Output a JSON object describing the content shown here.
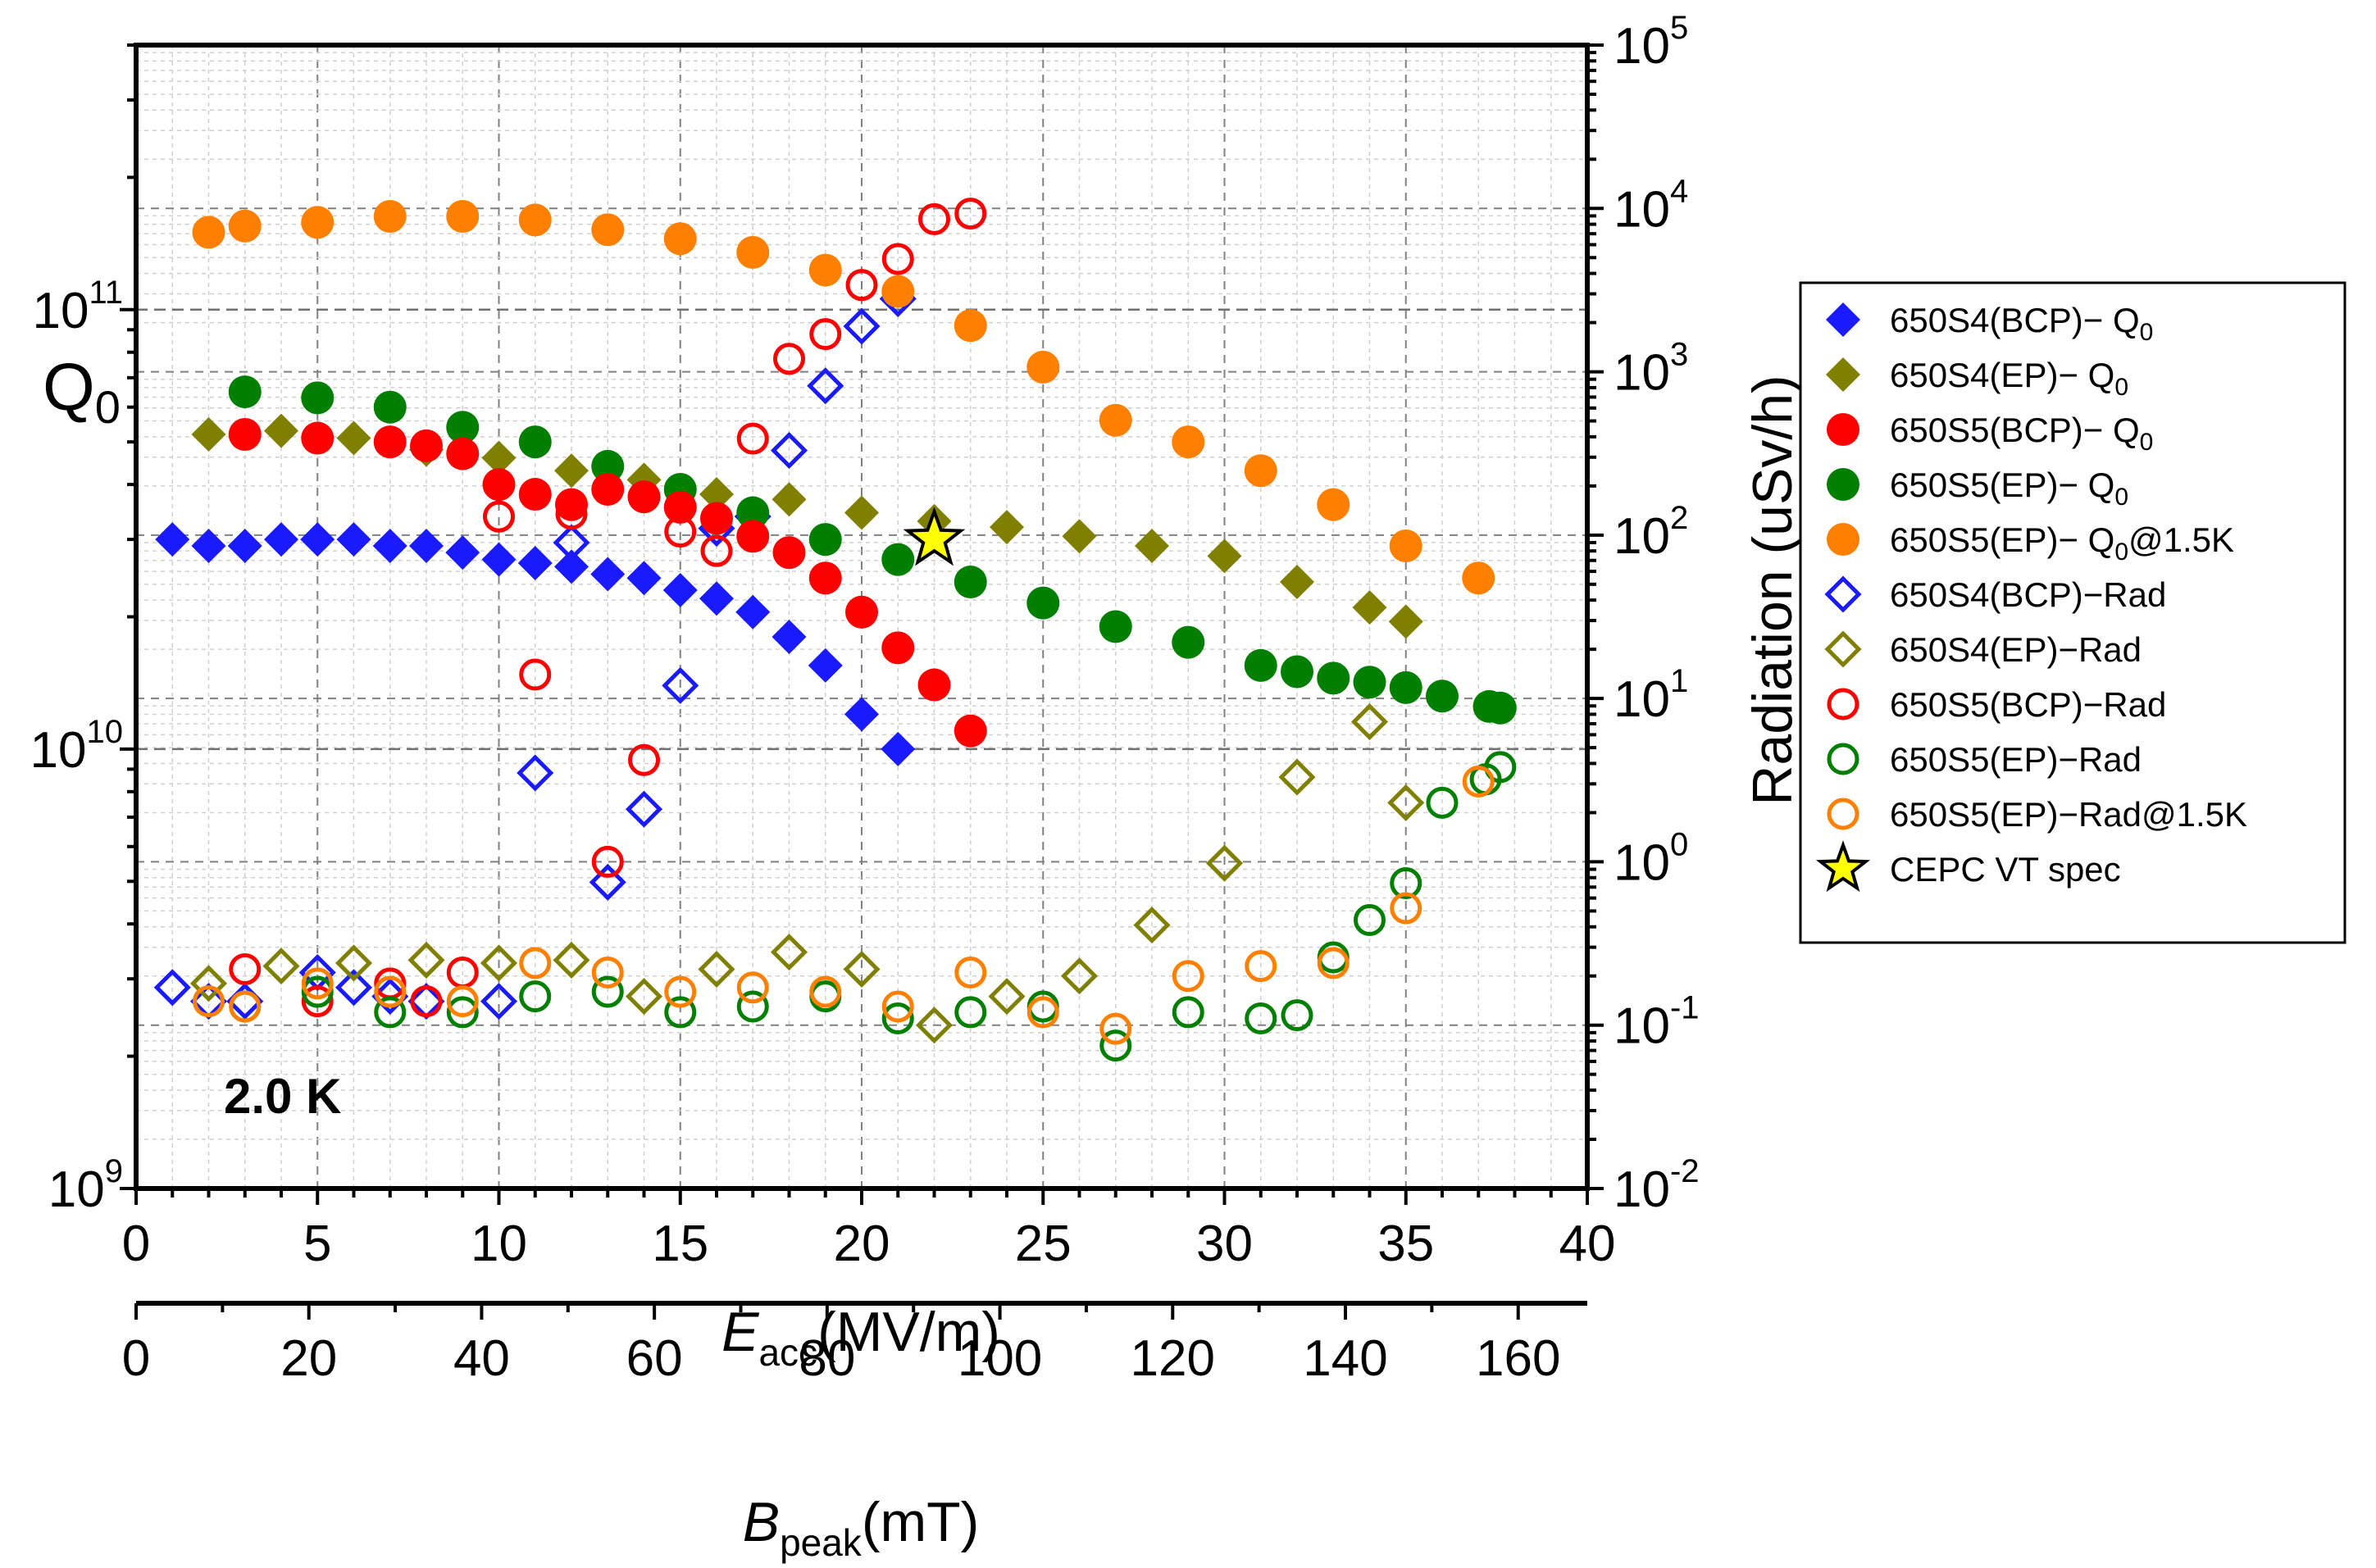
{
  "chart_data": {
    "type": "scatter",
    "annotation": "2.0 K",
    "x_axis": {
      "label_main": "E",
      "label_sub": "acc",
      "label_unit": "(MV/m)",
      "range": [
        0,
        40
      ],
      "ticks": [
        "0",
        "5",
        "10",
        "15",
        "20",
        "25",
        "30",
        "35",
        "40"
      ]
    },
    "x2_axis": {
      "label_main": "B",
      "label_sub": "peak",
      "label_unit": "(mT)",
      "ratio_mT_per_MVm": 4.2,
      "ticks": [
        "0",
        "20",
        "40",
        "60",
        "80",
        "100",
        "120",
        "140",
        "160"
      ]
    },
    "y_left": {
      "label_main": "Q",
      "label_sub": "0",
      "scale": "log",
      "range": [
        1000000000.0,
        400000000000.0
      ],
      "tick_base": "10",
      "tick_exponents": [
        "9",
        "10",
        "11"
      ]
    },
    "y_right": {
      "label": "Radiation (uSv/h)",
      "scale": "log",
      "range": [
        0.01,
        100000
      ],
      "tick_base": "10",
      "tick_exponents": [
        "-2",
        "-1",
        "0",
        "1",
        "2",
        "3",
        "4",
        "5"
      ]
    },
    "series": [
      {
        "name": "650S4(BCP)− Q0",
        "legend_main": "650S4(BCP)− Q",
        "legend_sub": "0",
        "legend_tail": "",
        "axis": "left",
        "marker": "diamond",
        "filled": true,
        "color": "#1a1aff",
        "points": [
          [
            1,
            30000000000.0
          ],
          [
            2,
            29000000000.0
          ],
          [
            3,
            29000000000.0
          ],
          [
            4,
            30000000000.0
          ],
          [
            5,
            30000000000.0
          ],
          [
            6,
            30000000000.0
          ],
          [
            7,
            29000000000.0
          ],
          [
            8,
            29000000000.0
          ],
          [
            9,
            28000000000.0
          ],
          [
            10,
            27000000000.0
          ],
          [
            11,
            26500000000.0
          ],
          [
            12,
            26000000000.0
          ],
          [
            13,
            25000000000.0
          ],
          [
            14,
            24500000000.0
          ],
          [
            15,
            23000000000.0
          ],
          [
            16,
            22000000000.0
          ],
          [
            17,
            20500000000.0
          ],
          [
            18,
            18000000000.0
          ],
          [
            19,
            15500000000.0
          ],
          [
            20,
            12000000000.0
          ],
          [
            21,
            10000000000.0
          ]
        ]
      },
      {
        "name": "650S4(EP)− Q0",
        "legend_main": "650S4(EP)− Q",
        "legend_sub": "0",
        "legend_tail": "",
        "axis": "left",
        "marker": "diamond",
        "filled": true,
        "color": "#7f7f00",
        "points": [
          [
            2,
            52000000000.0
          ],
          [
            4,
            53000000000.0
          ],
          [
            6,
            51000000000.0
          ],
          [
            8,
            48000000000.0
          ],
          [
            10,
            46000000000.0
          ],
          [
            12,
            43000000000.0
          ],
          [
            14,
            41000000000.0
          ],
          [
            16,
            38000000000.0
          ],
          [
            18,
            37000000000.0
          ],
          [
            20,
            34500000000.0
          ],
          [
            22,
            33000000000.0
          ],
          [
            24,
            32000000000.0
          ],
          [
            26,
            30500000000.0
          ],
          [
            28,
            29000000000.0
          ],
          [
            30,
            27500000000.0
          ],
          [
            32,
            24000000000.0
          ],
          [
            34,
            21000000000.0
          ],
          [
            35,
            19500000000.0
          ]
        ]
      },
      {
        "name": "650S5(BCP)− Q0",
        "legend_main": "650S5(BCP)− Q",
        "legend_sub": "0",
        "legend_tail": "",
        "axis": "left",
        "marker": "circle",
        "filled": true,
        "color": "#ff0000",
        "points": [
          [
            3,
            52000000000.0
          ],
          [
            5,
            51000000000.0
          ],
          [
            7,
            50000000000.0
          ],
          [
            8,
            49000000000.0
          ],
          [
            9,
            47000000000.0
          ],
          [
            10,
            40000000000.0
          ],
          [
            11,
            38000000000.0
          ],
          [
            12,
            36000000000.0
          ],
          [
            13,
            39000000000.0
          ],
          [
            14,
            37500000000.0
          ],
          [
            15,
            35500000000.0
          ],
          [
            16,
            33500000000.0
          ],
          [
            17,
            30500000000.0
          ],
          [
            18,
            28000000000.0
          ],
          [
            19,
            24500000000.0
          ],
          [
            20,
            20500000000.0
          ],
          [
            21,
            17000000000.0
          ],
          [
            22,
            14000000000.0
          ],
          [
            23,
            11000000000.0
          ]
        ]
      },
      {
        "name": "650S5(EP)− Q0",
        "legend_main": "650S5(EP)− Q",
        "legend_sub": "0",
        "legend_tail": "",
        "axis": "left",
        "marker": "circle",
        "filled": true,
        "color": "#007f00",
        "points": [
          [
            3,
            65000000000.0
          ],
          [
            5,
            63000000000.0
          ],
          [
            7,
            60000000000.0
          ],
          [
            9,
            54000000000.0
          ],
          [
            11,
            50000000000.0
          ],
          [
            13,
            44000000000.0
          ],
          [
            15,
            39000000000.0
          ],
          [
            17,
            34500000000.0
          ],
          [
            19,
            30000000000.0
          ],
          [
            21,
            27000000000.0
          ],
          [
            23,
            24000000000.0
          ],
          [
            25,
            21500000000.0
          ],
          [
            27,
            19000000000.0
          ],
          [
            29,
            17500000000.0
          ],
          [
            31,
            15500000000.0
          ],
          [
            32,
            15000000000.0
          ],
          [
            33,
            14500000000.0
          ],
          [
            34,
            14200000000.0
          ],
          [
            35,
            13800000000.0
          ],
          [
            36,
            13200000000.0
          ],
          [
            37.3,
            12500000000.0
          ],
          [
            37.6,
            12400000000.0
          ]
        ]
      },
      {
        "name": "650S5(EP)− Q0@1.5K",
        "legend_main": "650S5(EP)− Q",
        "legend_sub": "0",
        "legend_tail": "@1.5K",
        "axis": "left",
        "marker": "circle",
        "filled": true,
        "color": "#ff8000",
        "points": [
          [
            2,
            150000000000.0
          ],
          [
            3,
            155000000000.0
          ],
          [
            5,
            158000000000.0
          ],
          [
            7,
            163000000000.0
          ],
          [
            9,
            163000000000.0
          ],
          [
            11,
            160000000000.0
          ],
          [
            13,
            152000000000.0
          ],
          [
            15,
            145000000000.0
          ],
          [
            17,
            135000000000.0
          ],
          [
            19,
            123000000000.0
          ],
          [
            21,
            110000000000.0
          ],
          [
            23,
            92000000000.0
          ],
          [
            25,
            74000000000.0
          ],
          [
            27,
            56000000000.0
          ],
          [
            29,
            50000000000.0
          ],
          [
            31,
            43000000000.0
          ],
          [
            33,
            36000000000.0
          ],
          [
            35,
            29000000000.0
          ],
          [
            37,
            24500000000.0
          ]
        ]
      },
      {
        "name": "650S4(BCP)−Rad",
        "legend_main": "650S4(BCP)−Rad",
        "legend_sub": "",
        "legend_tail": "",
        "axis": "right",
        "marker": "diamond",
        "filled": false,
        "color": "#1a1aff",
        "points": [
          [
            1,
            0.17
          ],
          [
            2,
            0.14
          ],
          [
            3,
            0.14
          ],
          [
            5,
            0.21
          ],
          [
            6,
            0.17
          ],
          [
            7,
            0.15
          ],
          [
            8,
            0.14
          ],
          [
            10,
            0.14
          ],
          [
            11,
            3.5
          ],
          [
            12,
            90
          ],
          [
            13,
            0.75
          ],
          [
            14,
            2.1
          ],
          [
            15,
            12
          ],
          [
            16,
            110
          ],
          [
            17,
            130
          ],
          [
            18,
            330
          ],
          [
            19,
            820
          ],
          [
            20,
            1900
          ],
          [
            21,
            2800
          ]
        ]
      },
      {
        "name": "650S4(EP)−Rad",
        "legend_main": "650S4(EP)−Rad",
        "legend_sub": "",
        "legend_tail": "",
        "axis": "right",
        "marker": "diamond",
        "filled": false,
        "color": "#7f7f00",
        "points": [
          [
            2,
            0.18
          ],
          [
            4,
            0.23
          ],
          [
            6,
            0.24
          ],
          [
            8,
            0.25
          ],
          [
            10,
            0.24
          ],
          [
            12,
            0.25
          ],
          [
            14,
            0.15
          ],
          [
            16,
            0.22
          ],
          [
            18,
            0.28
          ],
          [
            20,
            0.22
          ],
          [
            22,
            0.1
          ],
          [
            24,
            0.15
          ],
          [
            26,
            0.2
          ],
          [
            28,
            0.41
          ],
          [
            30,
            0.98
          ],
          [
            32,
            3.3
          ],
          [
            34,
            7.2
          ],
          [
            35,
            2.3
          ]
        ]
      },
      {
        "name": "650S5(BCP)−Rad",
        "legend_main": "650S5(BCP)−Rad",
        "legend_sub": "",
        "legend_tail": "",
        "axis": "right",
        "marker": "circle",
        "filled": false,
        "color": "#ff0000",
        "points": [
          [
            3,
            0.22
          ],
          [
            5,
            0.14
          ],
          [
            7,
            0.18
          ],
          [
            8,
            0.14
          ],
          [
            9,
            0.21
          ],
          [
            10,
            130
          ],
          [
            11,
            14
          ],
          [
            12,
            135
          ],
          [
            13,
            1.0
          ],
          [
            14,
            4.2
          ],
          [
            15,
            105
          ],
          [
            16,
            80
          ],
          [
            17,
            390
          ],
          [
            18,
            1200
          ],
          [
            19,
            1700
          ],
          [
            20,
            3400
          ],
          [
            21,
            4900
          ],
          [
            22,
            8600
          ],
          [
            23,
            9300
          ]
        ]
      },
      {
        "name": "650S5(EP)−Rad",
        "legend_main": "650S5(EP)−Rad",
        "legend_sub": "",
        "legend_tail": "",
        "axis": "right",
        "marker": "circle",
        "filled": false,
        "color": "#007f00",
        "points": [
          [
            3,
            0.13
          ],
          [
            5,
            0.16
          ],
          [
            7,
            0.12
          ],
          [
            9,
            0.12
          ],
          [
            11,
            0.15
          ],
          [
            13,
            0.16
          ],
          [
            15,
            0.12
          ],
          [
            17,
            0.13
          ],
          [
            19,
            0.15
          ],
          [
            21,
            0.11
          ],
          [
            23,
            0.12
          ],
          [
            25,
            0.13
          ],
          [
            27,
            0.075
          ],
          [
            29,
            0.12
          ],
          [
            31,
            0.11
          ],
          [
            32,
            0.115
          ],
          [
            33,
            0.26
          ],
          [
            34,
            0.44
          ],
          [
            35,
            0.74
          ],
          [
            36,
            2.3
          ],
          [
            37.2,
            3.2
          ],
          [
            37.6,
            3.8
          ]
        ]
      },
      {
        "name": "650S5(EP)−Rad@1.5K",
        "legend_main": "650S5(EP)−Rad@1.5K",
        "legend_sub": "",
        "legend_tail": "",
        "axis": "right",
        "marker": "circle",
        "filled": false,
        "color": "#ff8000",
        "points": [
          [
            2,
            0.14
          ],
          [
            3,
            0.13
          ],
          [
            5,
            0.18
          ],
          [
            7,
            0.16
          ],
          [
            9,
            0.14
          ],
          [
            11,
            0.24
          ],
          [
            13,
            0.21
          ],
          [
            15,
            0.16
          ],
          [
            17,
            0.17
          ],
          [
            19,
            0.16
          ],
          [
            21,
            0.13
          ],
          [
            23,
            0.21
          ],
          [
            25,
            0.12
          ],
          [
            27,
            0.095
          ],
          [
            29,
            0.2
          ],
          [
            31,
            0.23
          ],
          [
            33,
            0.24
          ],
          [
            35,
            0.52
          ],
          [
            37,
            3.1
          ]
        ]
      },
      {
        "name": "CEPC VT spec",
        "legend_main": "CEPC VT spec",
        "legend_sub": "",
        "legend_tail": "",
        "axis": "left",
        "marker": "star",
        "filled": true,
        "color": "#ffff00",
        "points": [
          [
            22,
            30000000000.0
          ]
        ]
      }
    ]
  }
}
